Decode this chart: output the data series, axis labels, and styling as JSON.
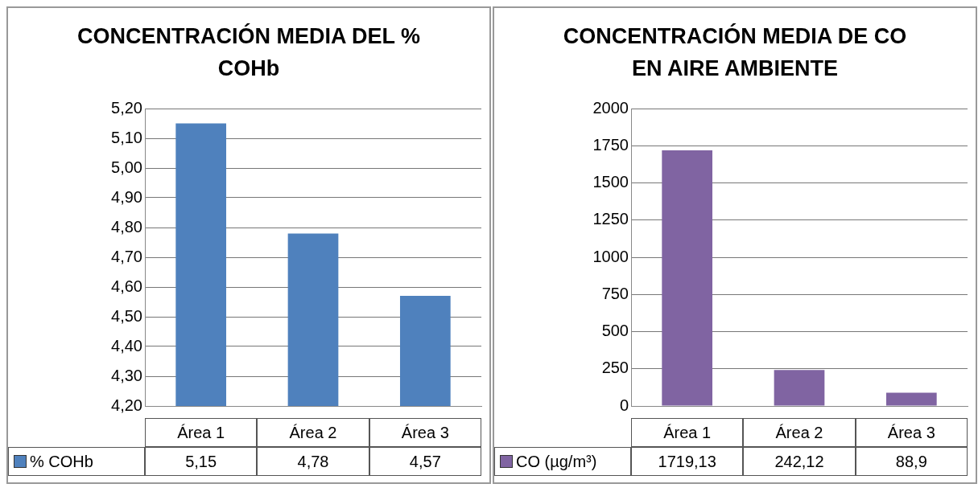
{
  "chart_data": [
    {
      "type": "bar",
      "title": "CONCENTRACIÓN MEDIA DEL % COHb",
      "categories": [
        "Área 1",
        "Área 2",
        "Área 3"
      ],
      "series": [
        {
          "name": "% COHb",
          "color": "#4f81bd",
          "values": [
            5.15,
            4.78,
            4.57
          ],
          "value_labels": [
            "5,15",
            "4,78",
            "4,57"
          ]
        }
      ],
      "ylim": [
        4.2,
        5.2
      ],
      "yticks": [
        {
          "value": 4.2,
          "label": "4,20"
        },
        {
          "value": 4.3,
          "label": "4,30"
        },
        {
          "value": 4.4,
          "label": "4,40"
        },
        {
          "value": 4.5,
          "label": "4,50"
        },
        {
          "value": 4.6,
          "label": "4,60"
        },
        {
          "value": 4.7,
          "label": "4,70"
        },
        {
          "value": 4.8,
          "label": "4,80"
        },
        {
          "value": 4.9,
          "label": "4,90"
        },
        {
          "value": 5.0,
          "label": "5,00"
        },
        {
          "value": 5.1,
          "label": "5,10"
        },
        {
          "value": 5.2,
          "label": "5,20"
        }
      ],
      "grid": "y",
      "legend": "bottom"
    },
    {
      "type": "bar",
      "title": "CONCENTRACIÓN MEDIA DE CO EN AIRE AMBIENTE",
      "categories": [
        "Área 1",
        "Área 2",
        "Área 3"
      ],
      "series": [
        {
          "name": "CO (µg/m³)",
          "color": "#8064a2",
          "values": [
            1719.13,
            242.12,
            88.9
          ],
          "value_labels": [
            "1719,13",
            "242,12",
            "88,9"
          ]
        }
      ],
      "ylim": [
        0,
        2000
      ],
      "yticks": [
        0,
        250,
        500,
        750,
        1000,
        1250,
        1500,
        1750,
        2000
      ],
      "grid": "y",
      "legend": "bottom"
    }
  ]
}
